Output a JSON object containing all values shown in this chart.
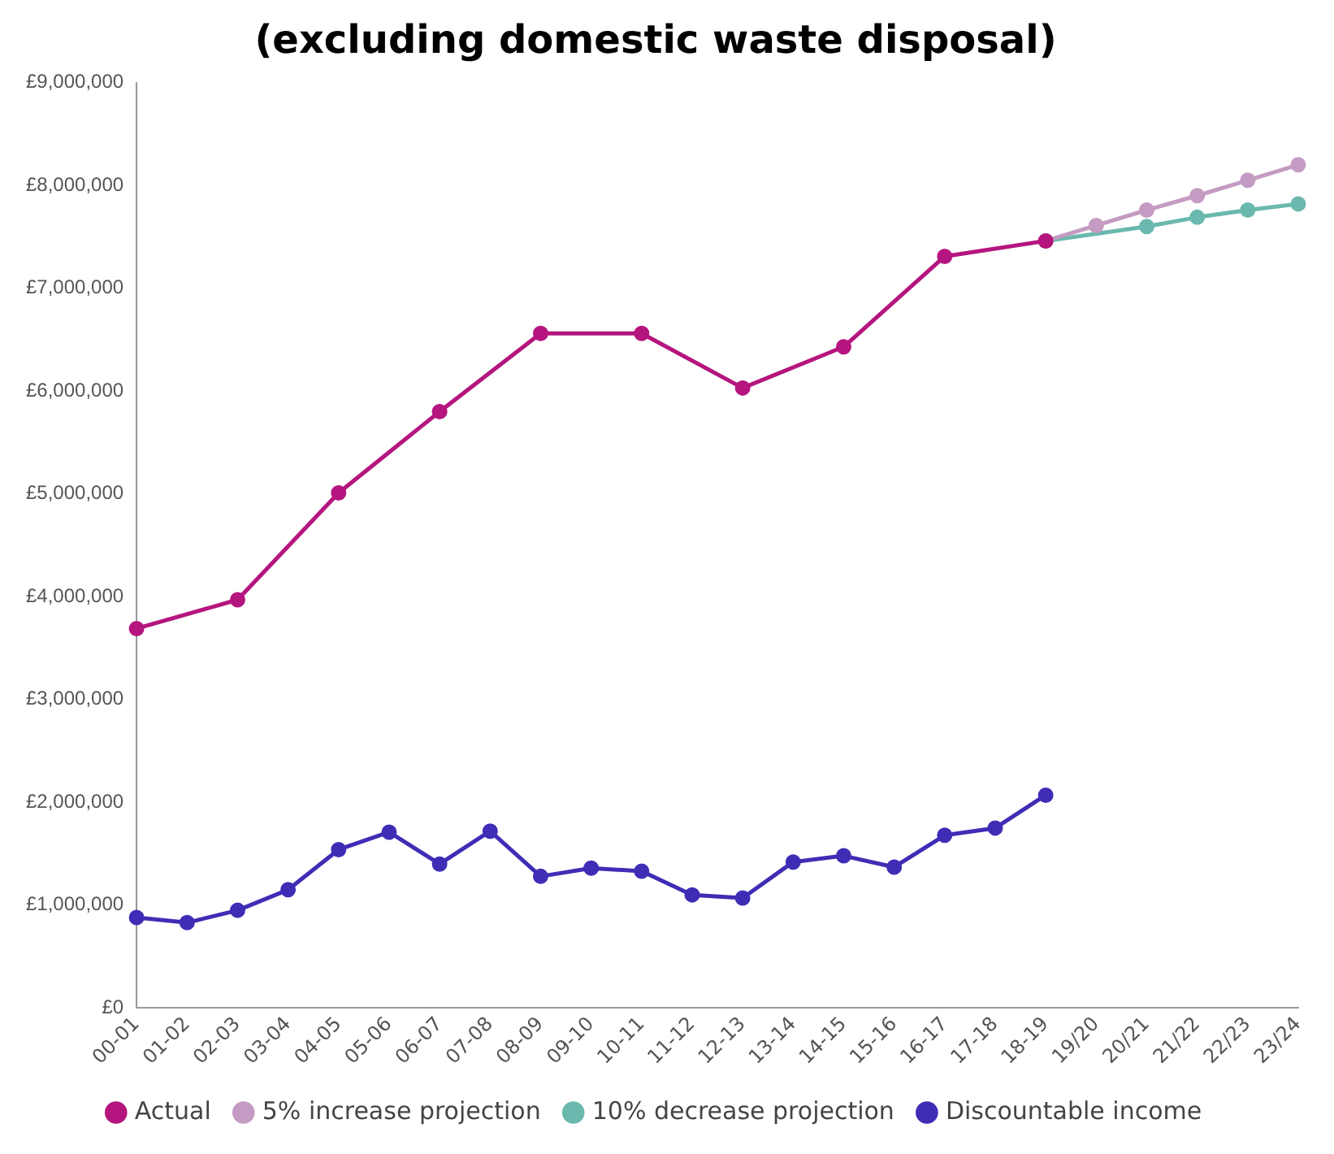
{
  "chart_data": {
    "type": "line",
    "title": "(excluding domestic waste disposal)",
    "categories": [
      "00-01",
      "01-02",
      "02-03",
      "03-04",
      "04-05",
      "05-06",
      "06-07",
      "07-08",
      "08-09",
      "09-10",
      "10-11",
      "11-12",
      "12-13",
      "13-14",
      "14-15",
      "15-16",
      "16-17",
      "17-18",
      "18-19",
      "19/20",
      "20/21",
      "21/22",
      "22/23",
      "23/24"
    ],
    "series": [
      {
        "name": "Actual",
        "color": "#b5157e",
        "values": [
          3690000,
          null,
          3970000,
          null,
          5010000,
          null,
          5800000,
          null,
          6560000,
          null,
          6560000,
          null,
          6030000,
          null,
          6430000,
          null,
          7310000,
          null,
          7460000,
          null,
          null,
          null,
          null,
          null
        ]
      },
      {
        "name": "5% increase projection",
        "color": "#c49bc2",
        "values": [
          null,
          null,
          null,
          null,
          null,
          null,
          null,
          null,
          null,
          null,
          null,
          null,
          null,
          null,
          null,
          null,
          null,
          null,
          7460000,
          7610000,
          7760000,
          7900000,
          8050000,
          8200000
        ]
      },
      {
        "name": "10% decrease projection",
        "color": "#6ab8ae",
        "values": [
          null,
          null,
          null,
          null,
          null,
          null,
          null,
          null,
          null,
          null,
          null,
          null,
          null,
          null,
          null,
          null,
          null,
          null,
          7460000,
          null,
          7600000,
          7690000,
          7760000,
          7820000
        ]
      },
      {
        "name": "Discountable income",
        "color": "#3f2db5",
        "values": [
          880000,
          830000,
          950000,
          1150000,
          1540000,
          1710000,
          1400000,
          1720000,
          1280000,
          1360000,
          1330000,
          1100000,
          1070000,
          1420000,
          1480000,
          1370000,
          1680000,
          1750000,
          2070000,
          null,
          null,
          null,
          null,
          null
        ]
      }
    ],
    "ylim": [
      0,
      9000000
    ],
    "yticks": [
      {
        "value": 0,
        "label": "£0"
      },
      {
        "value": 1000000,
        "label": "£1,000,000"
      },
      {
        "value": 2000000,
        "label": "£2,000,000"
      },
      {
        "value": 3000000,
        "label": "£3,000,000"
      },
      {
        "value": 4000000,
        "label": "£4,000,000"
      },
      {
        "value": 5000000,
        "label": "£5,000,000"
      },
      {
        "value": 6000000,
        "label": "£6,000,000"
      },
      {
        "value": 7000000,
        "label": "£7,000,000"
      },
      {
        "value": 8000000,
        "label": "£8,000,000"
      },
      {
        "value": 9000000,
        "label": "£9,000,000"
      }
    ],
    "grid": false,
    "legend": "bottom",
    "marker": "circle",
    "line_style": "solid"
  }
}
